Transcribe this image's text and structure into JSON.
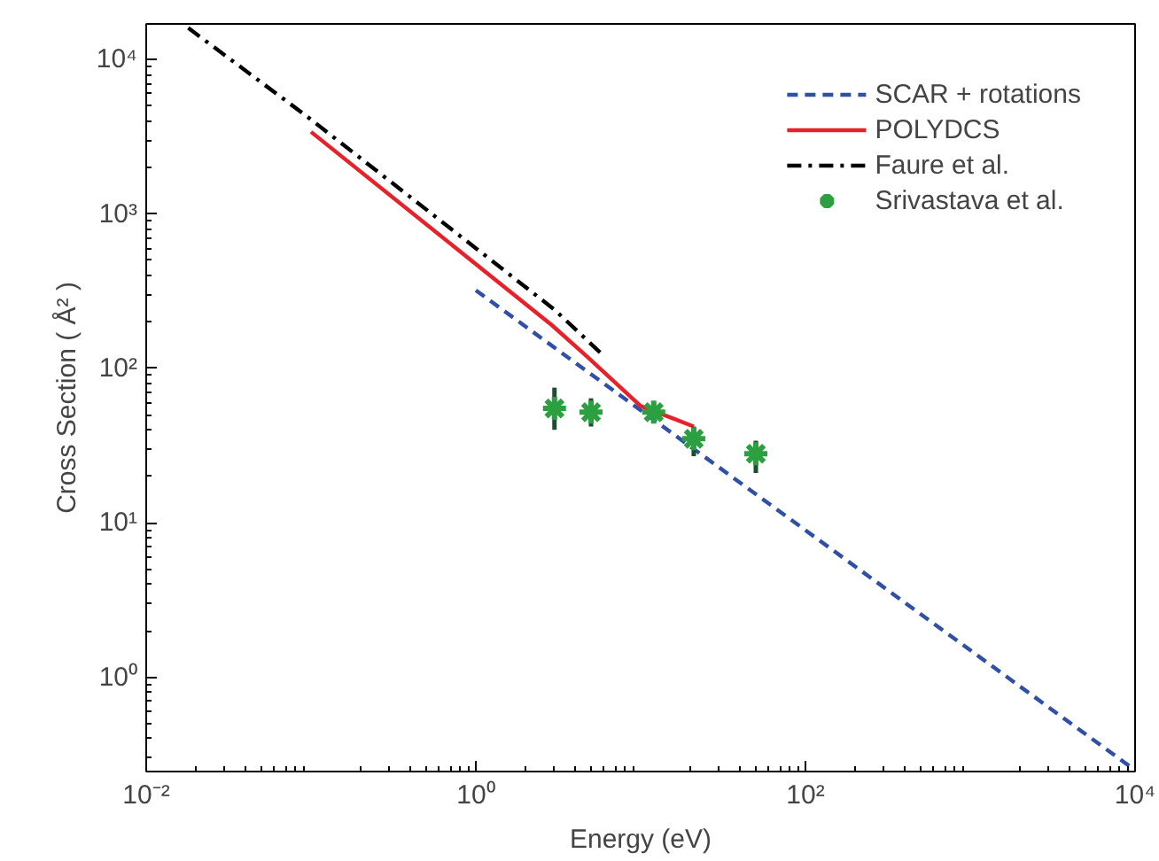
{
  "chart_data": {
    "type": "line",
    "xlabel": "Energy (eV)",
    "ylabel": "Cross Section ( Å² )",
    "log": "xy",
    "grid": false,
    "legend": "top right",
    "xlim": [
      0.01,
      10000
    ],
    "ylim": [
      0.245,
      17000
    ],
    "xticks": [
      {
        "value": 0.01,
        "label": "10⁻²"
      },
      {
        "value": 1,
        "label": "10⁰"
      },
      {
        "value": 100,
        "label": "10²"
      },
      {
        "value": 10000,
        "label": "10⁴"
      }
    ],
    "yticks": [
      {
        "value": 1,
        "label": "10⁰"
      },
      {
        "value": 10,
        "label": "10¹"
      },
      {
        "value": 100,
        "label": "10²"
      },
      {
        "value": 1000,
        "label": "10³"
      },
      {
        "value": 10000,
        "label": "10⁴"
      }
    ],
    "series": [
      {
        "name": "SCAR + rotations",
        "line_style": "dashed",
        "color": "#3050a8",
        "x": [
          1,
          10000
        ],
        "values": [
          320,
          0.25
        ]
      },
      {
        "name": "POLYDCS",
        "line_style": "solid",
        "color": "#e8202a",
        "x": [
          0.1,
          1.15,
          2.9,
          4.7,
          10,
          21
        ],
        "values": [
          3400,
          420,
          190,
          120,
          57,
          42
        ]
      },
      {
        "name": "Faure et al.",
        "line_style": "dashdot",
        "color": "#000000",
        "x": [
          0.018,
          0.094,
          3,
          6
        ],
        "values": [
          16000,
          4300,
          240,
          120
        ]
      },
      {
        "name": "Srivastava et al.",
        "type": "scatter",
        "marker": "cross",
        "color": "#2ca040",
        "x": [
          3,
          5,
          12,
          21,
          50
        ],
        "values": [
          55,
          52,
          52,
          35,
          28
        ],
        "errors": [
          [
            40,
            75
          ],
          [
            42,
            64
          ],
          [
            46,
            60
          ],
          [
            27,
            42
          ],
          [
            21,
            34
          ]
        ]
      }
    ]
  }
}
